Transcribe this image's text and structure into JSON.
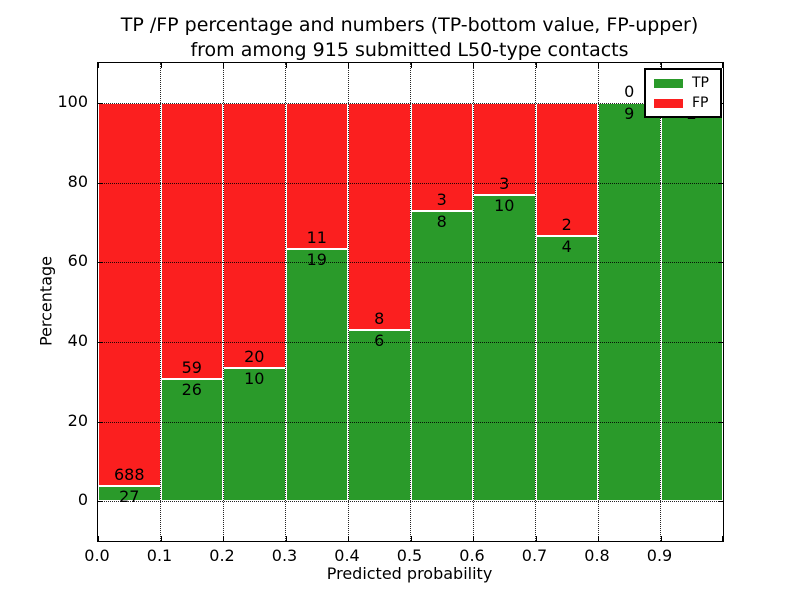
{
  "figure": {
    "title_line1": "TP /FP percentage and numbers (TP-bottom value, FP-upper)",
    "title_line2": "from among 915 submitted L50-type contacts"
  },
  "chart_data": {
    "type": "bar",
    "stacked": true,
    "normalized_to_percent": true,
    "title": "TP /FP percentage and numbers (TP-bottom value, FP-upper) from among 915 submitted L50-type contacts",
    "xlabel": "Predicted probability",
    "ylabel": "Percentage",
    "xlim": [
      0.0,
      1.0
    ],
    "ylim": [
      -10,
      110
    ],
    "x_tick_labels": [
      "0.0",
      "0.1",
      "0.2",
      "0.3",
      "0.4",
      "0.5",
      "0.6",
      "0.7",
      "0.8",
      "0.9"
    ],
    "y_ticks": [
      0,
      20,
      40,
      60,
      80,
      100
    ],
    "grid": "dotted",
    "total_contacts": 915,
    "series": [
      {
        "name": "TP",
        "color": "#2A9A2A"
      },
      {
        "name": "FP",
        "color": "#FB1F1F"
      }
    ],
    "bins": [
      {
        "range": [
          0.0,
          0.1
        ],
        "tp": 27,
        "fp": 688,
        "tp_pct": 3.78
      },
      {
        "range": [
          0.1,
          0.2
        ],
        "tp": 26,
        "fp": 59,
        "tp_pct": 30.59
      },
      {
        "range": [
          0.2,
          0.3
        ],
        "tp": 10,
        "fp": 20,
        "tp_pct": 33.33
      },
      {
        "range": [
          0.3,
          0.4
        ],
        "tp": 19,
        "fp": 11,
        "tp_pct": 63.33
      },
      {
        "range": [
          0.4,
          0.5
        ],
        "tp": 6,
        "fp": 8,
        "tp_pct": 42.86
      },
      {
        "range": [
          0.5,
          0.6
        ],
        "tp": 8,
        "fp": 3,
        "tp_pct": 72.73
      },
      {
        "range": [
          0.6,
          0.7
        ],
        "tp": 10,
        "fp": 3,
        "tp_pct": 76.92
      },
      {
        "range": [
          0.7,
          0.8
        ],
        "tp": 4,
        "fp": 2,
        "tp_pct": 66.67
      },
      {
        "range": [
          0.8,
          0.9
        ],
        "tp": 9,
        "fp": 0,
        "tp_pct": 100.0
      },
      {
        "range": [
          0.9,
          1.0
        ],
        "tp": 2,
        "fp": 0,
        "tp_pct": 100.0
      }
    ],
    "legend": {
      "position": "upper right",
      "entries": [
        {
          "label": "TP",
          "color": "#2A9A2A"
        },
        {
          "label": "FP",
          "color": "#FB1F1F"
        }
      ]
    }
  }
}
